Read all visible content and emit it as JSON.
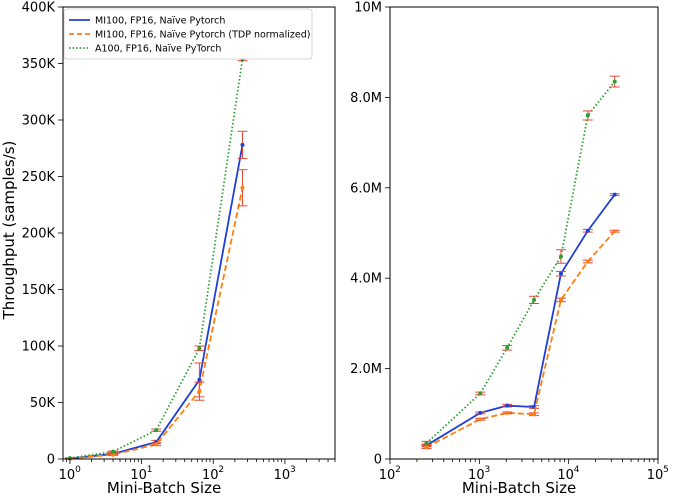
{
  "colors": {
    "mi100": "#1f3fd6",
    "mi100_tdp": "#ff7f0e",
    "a100": "#2ca02c",
    "error_bar": "#e8473a"
  },
  "chart_data": [
    {
      "type": "line",
      "xscale": "log",
      "xlim": [
        0.8,
        5000
      ],
      "ylim": [
        0,
        400000
      ],
      "xlabel": "Mini-Batch Size",
      "ylabel": "Throughput (samples/s)",
      "x_tick_values": [
        1,
        10,
        100,
        1000
      ],
      "x_ticks": [
        "10",
        "10",
        "10",
        "10"
      ],
      "x_tick_exponents": [
        "0",
        "1",
        "2",
        "3"
      ],
      "y_tick_values": [
        0,
        50000,
        100000,
        150000,
        200000,
        250000,
        300000,
        350000,
        400000
      ],
      "y_ticks": [
        "0",
        "50K",
        "100K",
        "150K",
        "200K",
        "250K",
        "300K",
        "350K",
        "400K"
      ],
      "legend_position": "upper-left",
      "grid": false,
      "series": [
        {
          "name": "MI100, FP16, Naïve Pytorch",
          "style": "solid",
          "color_key": "mi100",
          "x": [
            1,
            4,
            16,
            64,
            256
          ],
          "y": [
            500,
            4500,
            15000,
            70000,
            278000
          ],
          "err": [
            200,
            500,
            1500,
            15000,
            12000
          ]
        },
        {
          "name": "MI100, FP16, Naïve Pytorch (TDP normalized)",
          "style": "dashed",
          "color_key": "mi100_tdp",
          "x": [
            1,
            4,
            16,
            64,
            256
          ],
          "y": [
            400,
            3800,
            13000,
            60000,
            240000
          ],
          "err": [
            200,
            500,
            1200,
            8000,
            16000
          ]
        },
        {
          "name": "A100, FP16, Naïve PyTorch",
          "style": "dotted",
          "color_key": "a100",
          "x": [
            1,
            4,
            16,
            64,
            256
          ],
          "y": [
            800,
            6500,
            25500,
            98000,
            354000
          ],
          "err": [
            200,
            500,
            1000,
            2000,
            1500
          ]
        }
      ]
    },
    {
      "type": "line",
      "xscale": "log",
      "xlim": [
        100,
        100000
      ],
      "ylim": [
        0,
        10000000
      ],
      "xlabel": "Mini-Batch Size",
      "ylabel": "",
      "x_tick_values": [
        100,
        1000,
        10000,
        100000
      ],
      "x_ticks": [
        "10",
        "10",
        "10",
        "10"
      ],
      "x_tick_exponents": [
        "2",
        "3",
        "4",
        "5"
      ],
      "y_tick_values": [
        0,
        2000000,
        4000000,
        6000000,
        8000000,
        10000000
      ],
      "y_ticks": [
        "0",
        "2.0M",
        "4.0M",
        "6.0M",
        "8.0M",
        "10M"
      ],
      "grid": false,
      "series": [
        {
          "name": "MI100, FP16, Naïve Pytorch",
          "style": "solid",
          "color_key": "mi100",
          "x": [
            256,
            1024,
            2048,
            4096,
            8192,
            16384,
            32768
          ],
          "y": [
            300000,
            1020000,
            1180000,
            1150000,
            4100000,
            5050000,
            5850000
          ],
          "err": [
            30000,
            20000,
            30000,
            30000,
            50000,
            30000,
            20000
          ]
        },
        {
          "name": "MI100, FP16, Naïve Pytorch (TDP normalized)",
          "style": "dashed",
          "color_key": "mi100_tdp",
          "x": [
            256,
            1024,
            2048,
            4096,
            8192,
            16384,
            32768
          ],
          "y": [
            260000,
            880000,
            1020000,
            990000,
            3520000,
            4370000,
            5040000
          ],
          "err": [
            30000,
            20000,
            20000,
            30000,
            40000,
            30000,
            20000
          ]
        },
        {
          "name": "A100, FP16, Naïve PyTorch",
          "style": "dotted",
          "color_key": "a100",
          "x": [
            256,
            1024,
            2048,
            4096,
            8192,
            16384,
            32768
          ],
          "y": [
            350000,
            1450000,
            2460000,
            3520000,
            4480000,
            7600000,
            8350000
          ],
          "err": [
            40000,
            30000,
            50000,
            80000,
            150000,
            100000,
            120000
          ]
        }
      ]
    }
  ]
}
